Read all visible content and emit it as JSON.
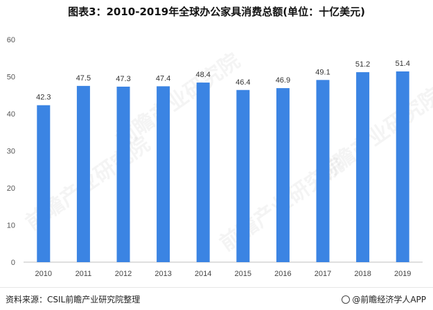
{
  "chart_data": {
    "type": "bar",
    "title": "图表3：2010-2019年全球办公家具消费总额(单位：十亿美元)",
    "categories": [
      "2010",
      "2011",
      "2012",
      "2013",
      "2014",
      "2015",
      "2016",
      "2017",
      "2018",
      "2019"
    ],
    "values": [
      42.3,
      47.5,
      47.3,
      47.4,
      48.4,
      46.4,
      46.9,
      49.1,
      51.2,
      51.4
    ],
    "value_labels": [
      "42.3",
      "47.5",
      "47.3",
      "47.4",
      "48.4",
      "46.4",
      "46.9",
      "49.1",
      "51.2",
      "51.4"
    ],
    "ylim": [
      0,
      60
    ],
    "yticks": [
      "0",
      "10",
      "20",
      "30",
      "40",
      "50",
      "60"
    ],
    "xlabel": "",
    "ylabel": "",
    "grid": false,
    "legend": "none",
    "bar_color": "#3b84e3"
  },
  "footer": {
    "source": "资料来源：CSIL前瞻产业研究院整理",
    "brand": "@前瞻经济学人APP"
  },
  "watermark": {
    "text": "前瞻产业研究院"
  }
}
